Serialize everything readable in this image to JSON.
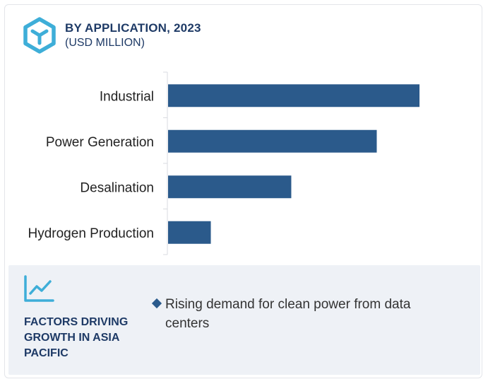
{
  "header": {
    "logo_icon": "cube-logo-icon",
    "title": "BY APPLICATION, 2023",
    "subtitle": "(USD MILLION)"
  },
  "chart_data": {
    "type": "bar",
    "orientation": "horizontal",
    "categories": [
      "Industrial",
      "Power Generation",
      "Desalination",
      "Hydrogen Production"
    ],
    "values": [
      100,
      83,
      49,
      17
    ],
    "value_note_unit": "relative",
    "xlim": [
      0,
      100
    ],
    "bar_color": "#2b5a8b",
    "grid": false,
    "legend": "none"
  },
  "footer": {
    "icon": "trend-line-icon",
    "title": "FACTORS DRIVING GROWTH IN ASIA PACIFIC",
    "bullets": [
      "Rising demand for clean power from data centers"
    ],
    "bullet_color": "#2a5a8c"
  }
}
